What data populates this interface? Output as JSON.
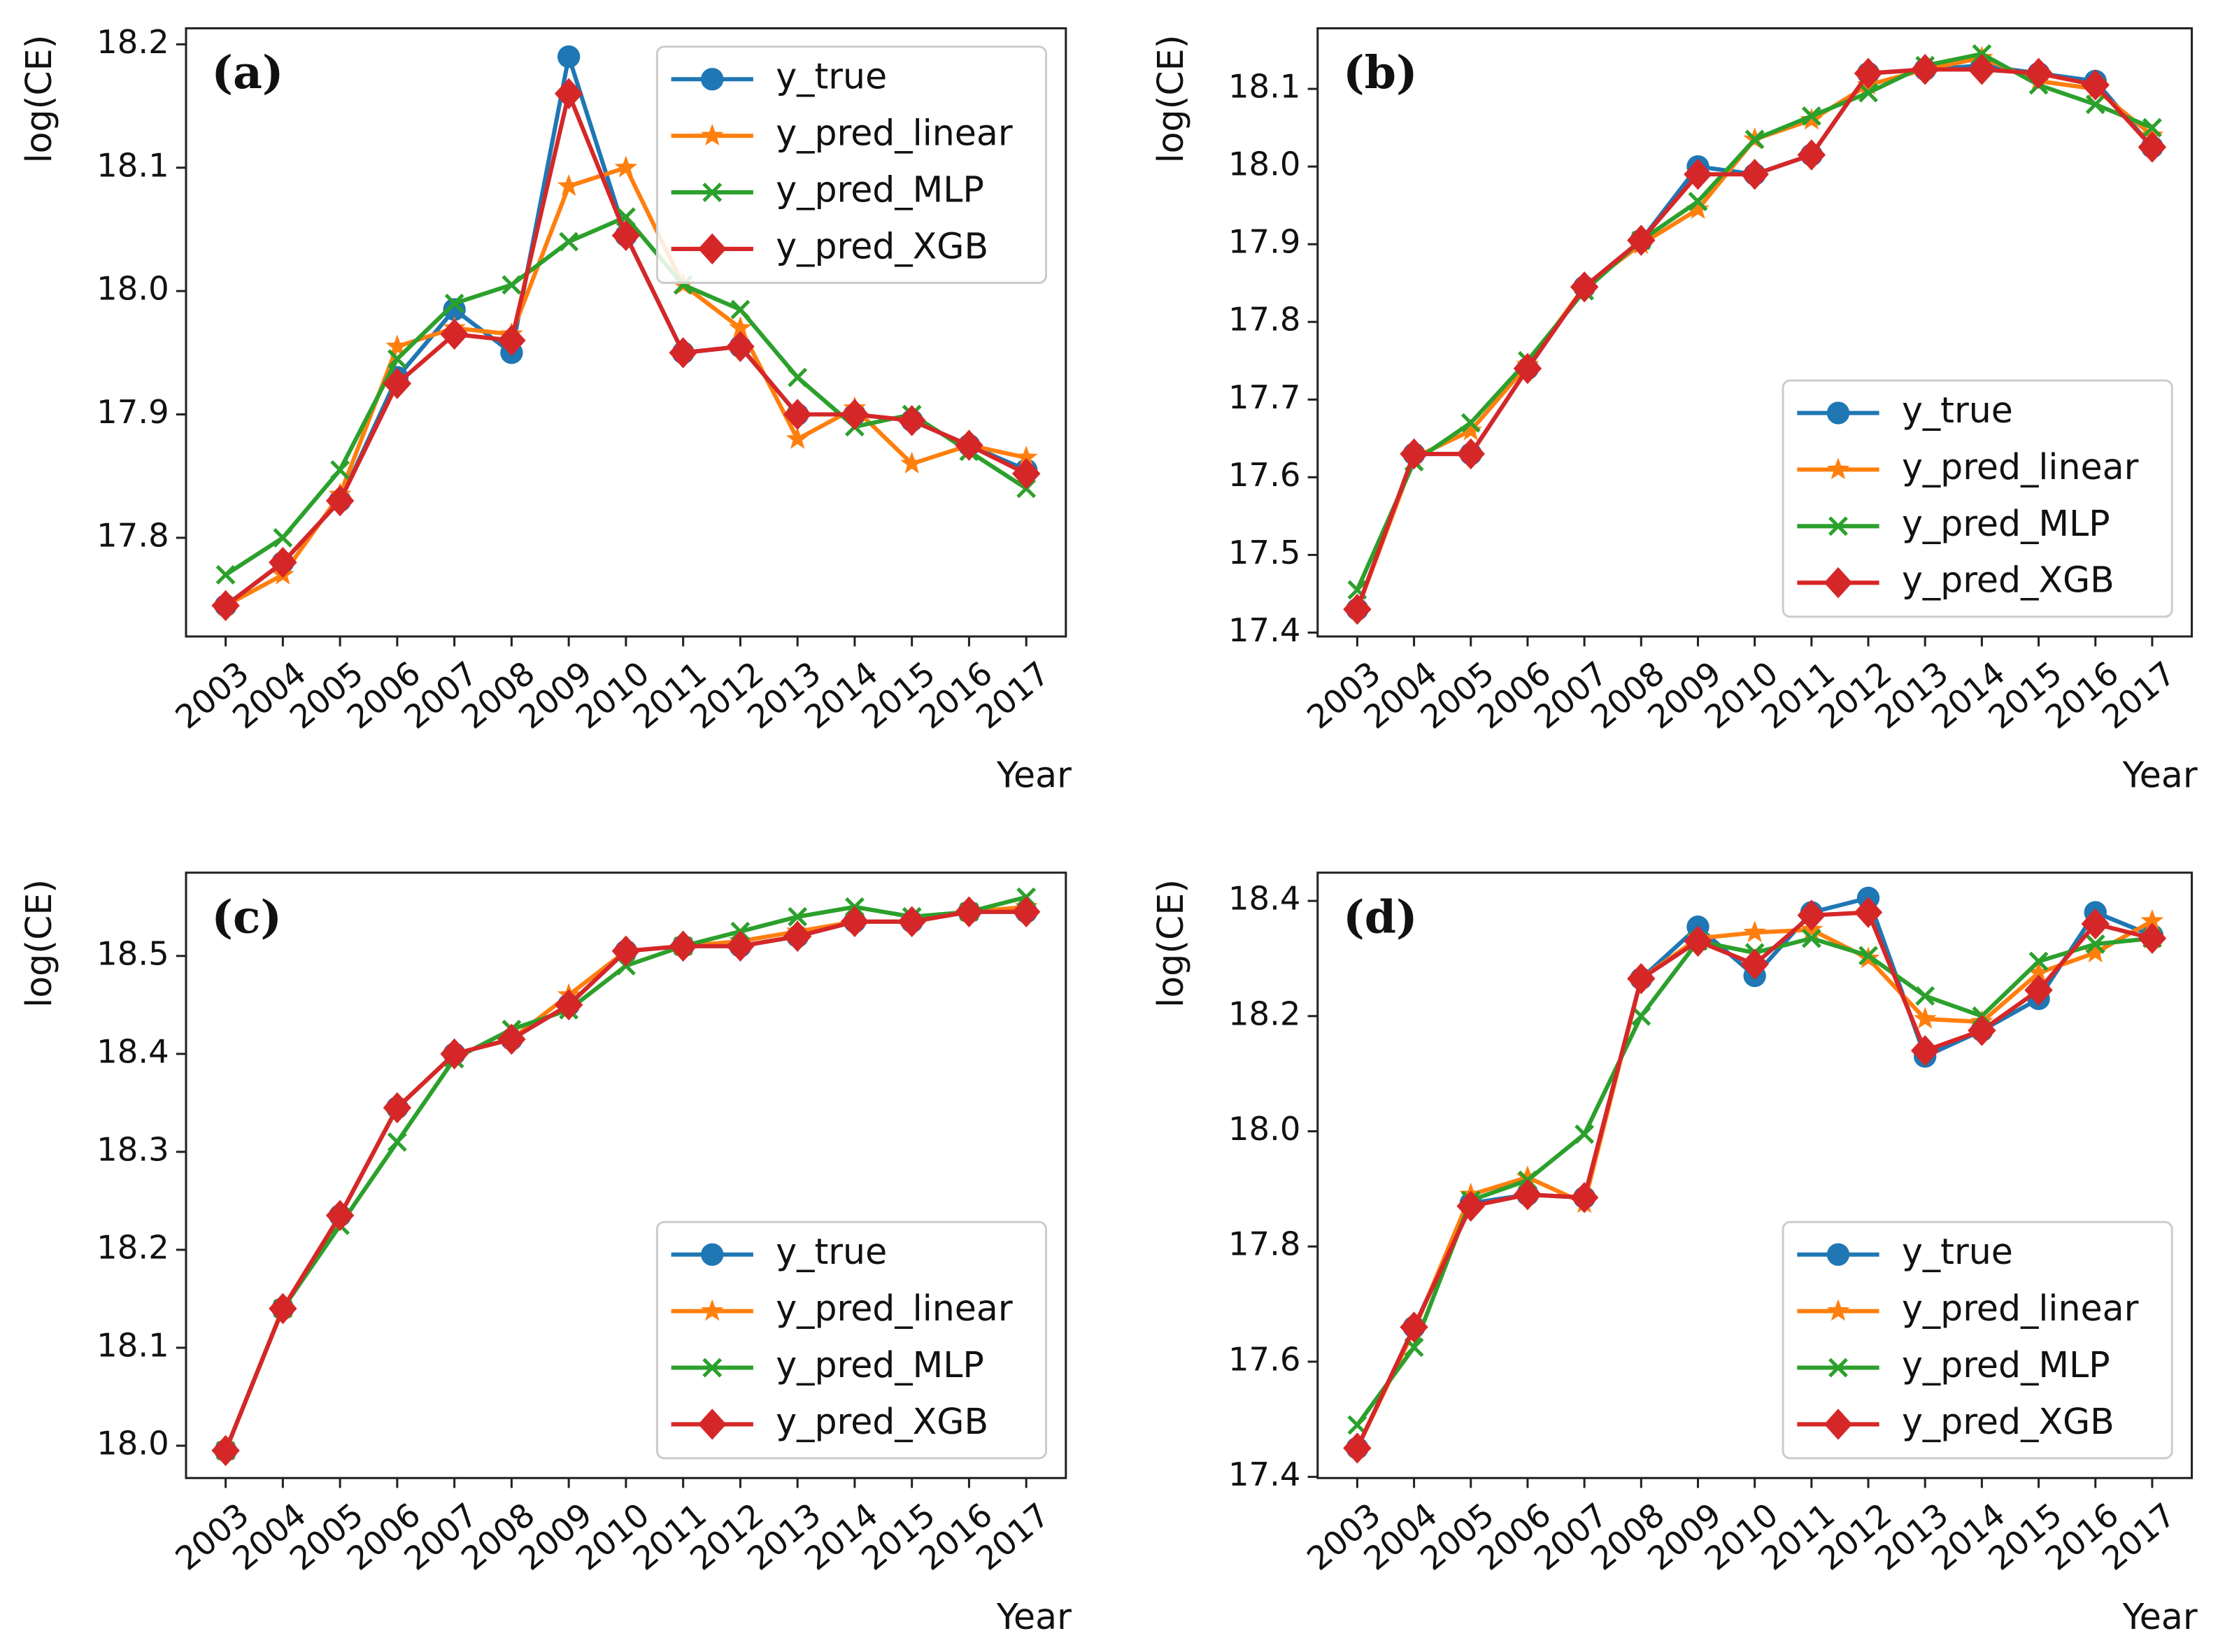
{
  "chart_data": [
    {
      "type": "line",
      "title": "(a)",
      "x_label": "Year",
      "y_label": "log(CE)",
      "legend": "upper right",
      "categories": [
        "2003",
        "2004",
        "2005",
        "2006",
        "2007",
        "2008",
        "2009",
        "2010",
        "2011",
        "2012",
        "2013",
        "2014",
        "2015",
        "2016",
        "2017"
      ],
      "ylim": [
        17.72,
        18.213
      ],
      "yticks": [
        17.8,
        17.9,
        {
          "value": 18,
          "label": "18.0"
        },
        18.1,
        18.2
      ],
      "series": [
        {
          "name": "y_true",
          "color": "#1f77b4",
          "marker": "circle",
          "values": [
            17.745,
            17.78,
            17.83,
            17.93,
            17.985,
            17.95,
            18.19,
            18.045,
            17.95,
            17.955,
            17.9,
            17.9,
            17.895,
            17.875,
            17.855
          ]
        },
        {
          "name": "y_pred_linear",
          "color": "#ff7f0e",
          "marker": "star",
          "values": [
            17.745,
            17.77,
            17.835,
            17.955,
            17.97,
            17.965,
            18.085,
            18.1,
            18.005,
            17.97,
            17.88,
            17.905,
            17.86,
            17.875,
            17.865
          ]
        },
        {
          "name": "y_pred_MLP",
          "color": "#2ca02c",
          "marker": "x",
          "values": [
            17.77,
            17.8,
            17.855,
            17.945,
            17.99,
            18.005,
            18.04,
            18.06,
            18.005,
            17.985,
            17.93,
            17.89,
            17.9,
            17.87,
            17.84
          ]
        },
        {
          "name": "y_pred_XGB",
          "color": "#d62728",
          "marker": "diamond",
          "values": [
            17.745,
            17.78,
            17.83,
            17.925,
            17.965,
            17.96,
            18.16,
            18.045,
            17.95,
            17.955,
            17.9,
            17.9,
            17.895,
            17.875,
            17.852
          ]
        }
      ]
    },
    {
      "type": "line",
      "title": "(b)",
      "x_label": "Year",
      "y_label": "log(CE)",
      "legend": "lower right",
      "categories": [
        "2003",
        "2004",
        "2005",
        "2006",
        "2007",
        "2008",
        "2009",
        "2010",
        "2011",
        "2012",
        "2013",
        "2014",
        "2015",
        "2016",
        "2017"
      ],
      "ylim": [
        17.395,
        18.178
      ],
      "yticks": [
        17.4,
        17.5,
        17.6,
        17.7,
        17.8,
        17.9,
        {
          "value": 18,
          "label": "18.0"
        },
        18.1
      ],
      "series": [
        {
          "name": "y_true",
          "color": "#1f77b4",
          "marker": "circle",
          "values": [
            17.43,
            17.63,
            17.63,
            17.74,
            17.845,
            17.905,
            18.0,
            17.99,
            18.015,
            18.12,
            18.125,
            18.13,
            18.12,
            18.11,
            18.025
          ]
        },
        {
          "name": "y_pred_linear",
          "color": "#ff7f0e",
          "marker": "star",
          "values": [
            17.43,
            17.625,
            17.66,
            17.745,
            17.845,
            17.9,
            17.945,
            18.035,
            18.06,
            18.105,
            18.125,
            18.14,
            18.11,
            18.1,
            18.04
          ]
        },
        {
          "name": "y_pred_MLP",
          "color": "#2ca02c",
          "marker": "x",
          "values": [
            17.455,
            17.62,
            17.67,
            17.75,
            17.84,
            17.905,
            17.955,
            18.035,
            18.065,
            18.095,
            18.13,
            18.145,
            18.105,
            18.08,
            18.05
          ]
        },
        {
          "name": "y_pred_XGB",
          "color": "#d62728",
          "marker": "diamond",
          "values": [
            17.43,
            17.63,
            17.63,
            17.74,
            17.845,
            17.905,
            17.99,
            17.99,
            18.015,
            18.12,
            18.125,
            18.125,
            18.12,
            18.105,
            18.025
          ]
        }
      ]
    },
    {
      "type": "line",
      "title": "(c)",
      "x_label": "Year",
      "y_label": "log(CE)",
      "legend": "lower right",
      "categories": [
        "2003",
        "2004",
        "2005",
        "2006",
        "2007",
        "2008",
        "2009",
        "2010",
        "2011",
        "2012",
        "2013",
        "2014",
        "2015",
        "2016",
        "2017"
      ],
      "ylim": [
        17.967,
        18.585
      ],
      "yticks": [
        {
          "value": 18,
          "label": "18.0"
        },
        18.1,
        18.2,
        18.3,
        18.4,
        18.5
      ],
      "series": [
        {
          "name": "y_true",
          "color": "#1f77b4",
          "marker": "circle",
          "values": [
            17.995,
            18.14,
            18.235,
            18.345,
            18.4,
            18.415,
            18.45,
            18.505,
            18.51,
            18.51,
            18.52,
            18.535,
            18.535,
            18.545,
            18.545
          ]
        },
        {
          "name": "y_pred_linear",
          "color": "#ff7f0e",
          "marker": "star",
          "values": [
            17.995,
            18.14,
            18.235,
            18.345,
            18.4,
            18.415,
            18.46,
            18.505,
            18.51,
            18.515,
            18.525,
            18.535,
            18.535,
            18.545,
            18.55
          ]
        },
        {
          "name": "y_pred_MLP",
          "color": "#2ca02c",
          "marker": "x",
          "values": [
            17.995,
            18.14,
            18.225,
            18.31,
            18.395,
            18.425,
            18.445,
            18.49,
            18.51,
            18.525,
            18.54,
            18.55,
            18.54,
            18.545,
            18.56
          ]
        },
        {
          "name": "y_pred_XGB",
          "color": "#d62728",
          "marker": "diamond",
          "values": [
            17.995,
            18.14,
            18.235,
            18.345,
            18.4,
            18.415,
            18.45,
            18.505,
            18.51,
            18.51,
            18.52,
            18.535,
            18.535,
            18.545,
            18.545
          ]
        }
      ]
    },
    {
      "type": "line",
      "title": "(d)",
      "x_label": "Year",
      "y_label": "log(CE)",
      "legend": "lower right",
      "categories": [
        "2003",
        "2004",
        "2005",
        "2006",
        "2007",
        "2008",
        "2009",
        "2010",
        "2011",
        "2012",
        "2013",
        "2014",
        "2015",
        "2016",
        "2017"
      ],
      "ylim": [
        17.398,
        18.449
      ],
      "yticks": [
        17.4,
        17.6,
        17.8,
        {
          "value": 18,
          "label": "18.0"
        },
        18.2,
        18.4
      ],
      "series": [
        {
          "name": "y_true",
          "color": "#1f77b4",
          "marker": "circle",
          "values": [
            17.45,
            17.66,
            17.875,
            17.89,
            17.885,
            18.265,
            18.355,
            18.27,
            18.38,
            18.405,
            18.13,
            18.175,
            18.23,
            18.38,
            18.34
          ]
        },
        {
          "name": "y_pred_linear",
          "color": "#ff7f0e",
          "marker": "star",
          "values": [
            17.45,
            17.655,
            17.89,
            17.92,
            17.875,
            18.265,
            18.335,
            18.345,
            18.35,
            18.3,
            18.195,
            18.19,
            18.275,
            18.31,
            18.365
          ]
        },
        {
          "name": "y_pred_MLP",
          "color": "#2ca02c",
          "marker": "x",
          "values": [
            17.49,
            17.625,
            17.88,
            17.915,
            17.995,
            18.2,
            18.33,
            18.31,
            18.335,
            18.305,
            18.235,
            18.2,
            18.295,
            18.325,
            18.335
          ]
        },
        {
          "name": "y_pred_XGB",
          "color": "#d62728",
          "marker": "diamond",
          "values": [
            17.45,
            17.66,
            17.87,
            17.89,
            17.885,
            18.265,
            18.33,
            18.29,
            18.375,
            18.38,
            18.14,
            18.175,
            18.245,
            18.36,
            18.335
          ]
        }
      ]
    }
  ]
}
